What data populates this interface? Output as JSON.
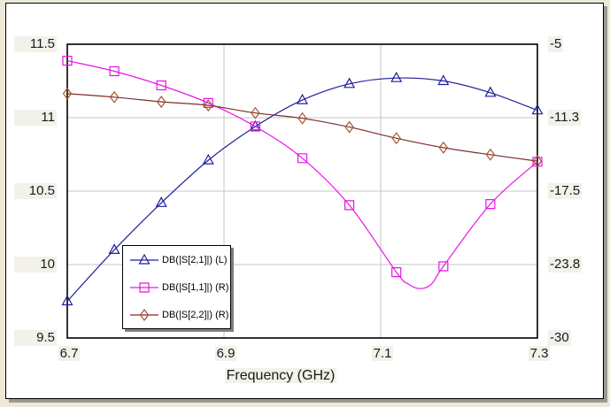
{
  "window": {
    "background_color": "#ece9d8",
    "panel_background": "#ffffff",
    "panel_border_color": "#000000",
    "panel_shadow_color": "#9a9a93"
  },
  "chart_data": {
    "type": "line",
    "title": "",
    "xlabel": "Frequency (GHz)",
    "grid": {
      "on": true,
      "color": "#c6c6c6",
      "frame_color": "#000000"
    },
    "label_background": "#f2f1ea",
    "x_axis": {
      "min": 6.7,
      "max": 7.3,
      "ticks": [
        "6.7",
        "6.9",
        "7.1",
        "7.3"
      ],
      "tick_values": [
        6.7,
        6.9,
        7.1,
        7.3
      ],
      "gridline_values": [
        6.9,
        7.1
      ]
    },
    "left_axis": {
      "min": 9.5,
      "max": 11.5,
      "ticks": [
        "11.5",
        "11",
        "10.5",
        "10",
        "9.5"
      ],
      "tick_values": [
        11.5,
        11,
        10.5,
        10,
        9.5
      ],
      "gridline_values": [
        11,
        10.5,
        10
      ]
    },
    "right_axis": {
      "min": -30,
      "max": -5,
      "ticks": [
        "-5",
        "-11.3",
        "-17.5",
        "-23.8",
        "-30"
      ],
      "tick_values": [
        -5,
        -11.3,
        -17.5,
        -23.8,
        -30
      ]
    },
    "x": [
      6.7,
      6.76,
      6.82,
      6.88,
      6.94,
      7.0,
      7.06,
      7.12,
      7.18,
      7.24,
      7.3
    ],
    "series": [
      {
        "name": "DB(|S[2,1]|)",
        "legend_label": "DB(|S[2,1]|) (L)",
        "axis": "left",
        "marker": "triangle",
        "color": "#1f1f9c",
        "values": [
          9.75,
          10.1,
          10.42,
          10.71,
          10.94,
          11.12,
          11.23,
          11.27,
          11.25,
          11.17,
          11.05
        ]
      },
      {
        "name": "DB(|S[1,1]|)",
        "legend_label": "DB(|S[1,1]|) (R)",
        "axis": "right",
        "marker": "square",
        "color": "#e616e6",
        "values": [
          -6.4,
          -7.3,
          -8.5,
          -10.0,
          -12.0,
          -14.7,
          -18.7,
          -24.4,
          -23.9,
          -18.6,
          -15.0
        ],
        "path_x": [
          6.7,
          6.76,
          6.82,
          6.88,
          6.94,
          7.0,
          7.06,
          7.12,
          7.135,
          7.15,
          7.165,
          7.18,
          7.24,
          7.3
        ],
        "path_y": [
          -6.4,
          -7.3,
          -8.5,
          -10.0,
          -12.0,
          -14.7,
          -18.7,
          -24.4,
          -25.4,
          -25.8,
          -25.4,
          -23.9,
          -18.6,
          -15.0
        ],
        "min_point": {
          "x": 7.15,
          "y": -25.8
        }
      },
      {
        "name": "DB(|S[2,2]|)",
        "legend_label": "DB(|S[2,2]|) (R)",
        "axis": "right",
        "marker": "diamond",
        "color": "#7c2d2d",
        "marker_color": "#a8542e",
        "values": [
          -9.2,
          -9.5,
          -9.9,
          -10.2,
          -10.85,
          -11.3,
          -12.05,
          -13.0,
          -13.8,
          -14.4,
          -14.95
        ]
      }
    ]
  }
}
